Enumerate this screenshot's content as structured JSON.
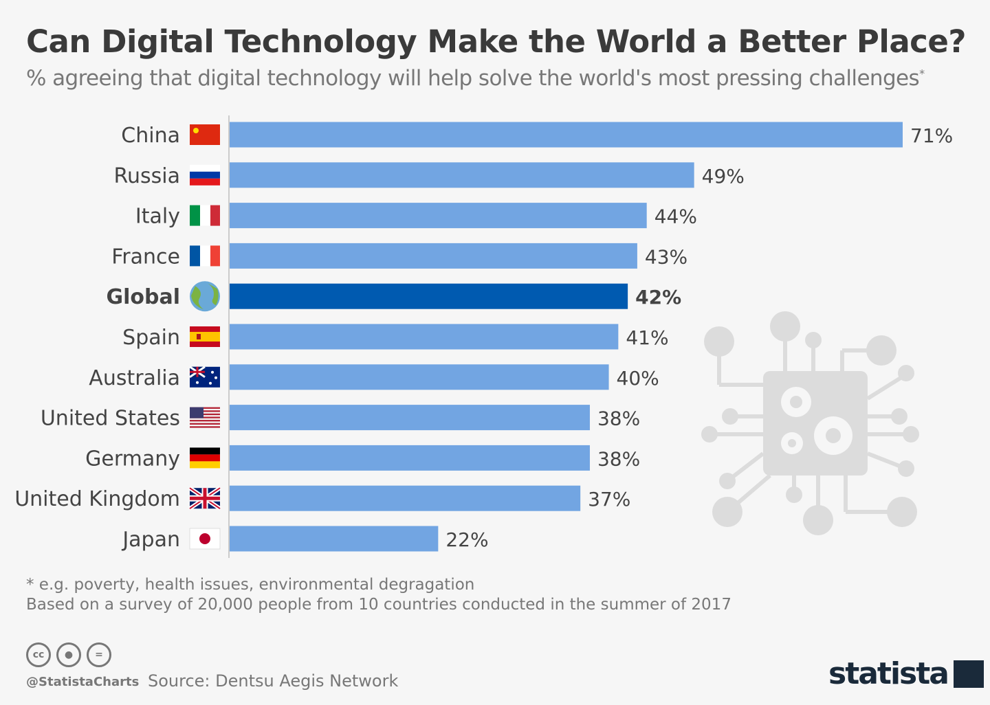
{
  "header": {
    "title": "Can Digital Technology Make the World a Better Place?",
    "subtitle": "% agreeing that digital technology will help solve the world's most pressing challenges",
    "subtitle_mark": "*"
  },
  "chart_data": {
    "type": "bar",
    "orientation": "horizontal",
    "title": "Can Digital Technology Make the World a Better Place?",
    "subtitle": "% agreeing that digital technology will help solve the world's most pressing challenges*",
    "categories": [
      "China",
      "Russia",
      "Italy",
      "France",
      "Global",
      "Spain",
      "Australia",
      "United States",
      "Germany",
      "United Kingdom",
      "Japan"
    ],
    "values": [
      71,
      49,
      44,
      43,
      42,
      41,
      40,
      38,
      38,
      37,
      22
    ],
    "labels": [
      "71%",
      "49%",
      "44%",
      "43%",
      "42%",
      "41%",
      "40%",
      "38%",
      "38%",
      "37%",
      "22%"
    ],
    "flags": [
      "flag-china-icon",
      "flag-russia-icon",
      "flag-italy-icon",
      "flag-france-icon",
      "globe-icon",
      "flag-spain-icon",
      "flag-australia-icon",
      "flag-usa-icon",
      "flag-germany-icon",
      "flag-uk-icon",
      "flag-japan-icon"
    ],
    "highlight": "Global",
    "xlim": [
      0,
      71
    ],
    "grid": false,
    "colors": {
      "bar": "#72a5e2",
      "highlight": "#005ab0"
    }
  },
  "notes": {
    "footnote": "* e.g. poverty, health issues, environmental degragation",
    "survey": "Based on a survey of 20,000 people from 10 countries conducted in the summer of 2017"
  },
  "footer": {
    "cc": "cc",
    "handle": "@StatistaCharts",
    "source": "Source: Dentsu Aegis Network",
    "logo": "statista"
  }
}
